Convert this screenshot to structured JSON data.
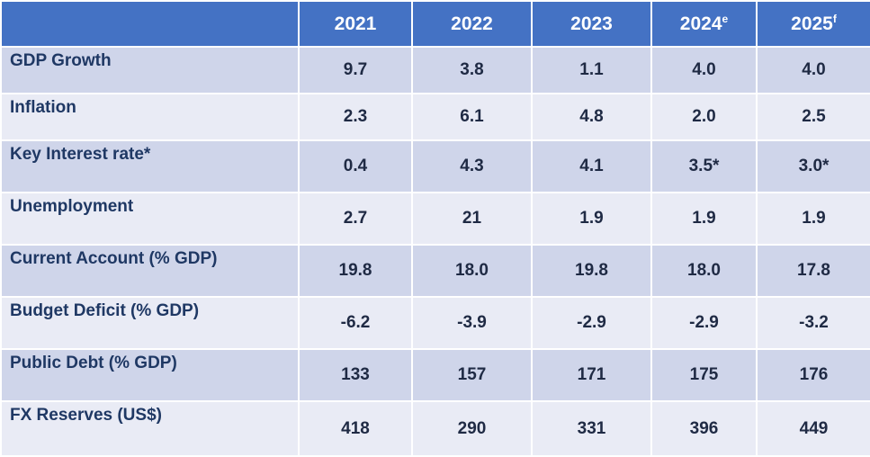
{
  "chart_data": {
    "type": "table",
    "columns": [
      {
        "year": "2021",
        "suffix": ""
      },
      {
        "year": "2022",
        "suffix": ""
      },
      {
        "year": "2023",
        "suffix": ""
      },
      {
        "year": "2024",
        "suffix": "e"
      },
      {
        "year": "2025",
        "suffix": "f"
      }
    ],
    "rows": [
      {
        "label": "GDP Growth",
        "values": [
          "9.7",
          "3.8",
          "1.1",
          "4.0",
          "4.0"
        ]
      },
      {
        "label": "Inflation",
        "values": [
          "2.3",
          "6.1",
          "4.8",
          "2.0",
          "2.5"
        ]
      },
      {
        "label": "Key Interest rate*",
        "values": [
          "0.4",
          "4.3",
          "4.1",
          "3.5*",
          "3.0*"
        ]
      },
      {
        "label": "Unemployment",
        "values": [
          "2.7",
          "21",
          "1.9",
          "1.9",
          "1.9"
        ]
      },
      {
        "label": "Current Account (% GDP)",
        "values": [
          "19.8",
          "18.0",
          "19.8",
          "18.0",
          "17.8"
        ]
      },
      {
        "label": "Budget Deficit (% GDP)",
        "values": [
          "-6.2",
          "-3.9",
          "-2.9",
          "-2.9",
          "-3.2"
        ]
      },
      {
        "label": "Public Debt (% GDP)",
        "values": [
          "133",
          "157",
          "171",
          "175",
          "176"
        ]
      },
      {
        "label": "FX Reserves (US$)",
        "values": [
          "418",
          "290",
          "331",
          "396",
          "449"
        ]
      }
    ]
  },
  "colors": {
    "header_bg": "#4472c4",
    "header_text": "#ffffff",
    "row_band_dark": "#cfd5ea",
    "row_band_light": "#e9ebf5",
    "label_text": "#1f3864",
    "value_text": "#1f2a44"
  }
}
